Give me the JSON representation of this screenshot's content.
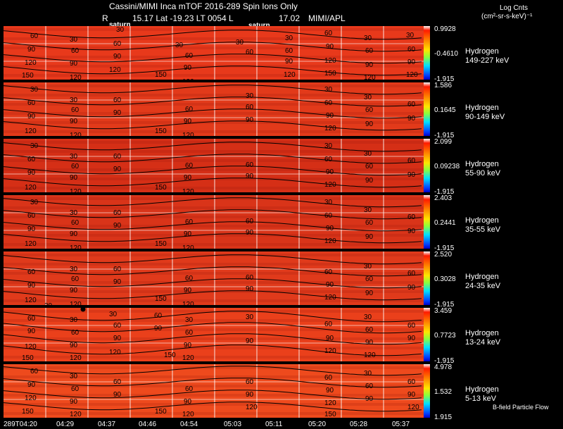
{
  "header": {
    "title_line": "Cassini/MIMI Inca mTOF  2016-289   Spin   Ions Only",
    "r_label": "R",
    "coords_line": "15.17 Lat -19.23 LT 0054 L",
    "l_value": "17.02",
    "institution": "MIMI/APL",
    "saturn_label": "saturn"
  },
  "colorbar_title": {
    "line1": "Log Cnts",
    "line2": "(cm²-sr-s-keV)⁻¹"
  },
  "panels": [
    {
      "species": "Hydrogen",
      "energy": "149-227 keV",
      "max": "0.9928",
      "mid": "-0.4610",
      "min": "-1.915"
    },
    {
      "species": "Hydrogen",
      "energy": "90-149 keV",
      "max": "1.586",
      "mid": "0.1645",
      "min": "-1.915"
    },
    {
      "species": "Hydrogen",
      "energy": "55-90 keV",
      "max": "2.099",
      "mid": "0.09238",
      "min": "-1.915"
    },
    {
      "species": "Hydrogen",
      "energy": "35-55 keV",
      "max": "2.403",
      "mid": "0.2441",
      "min": "-1.915"
    },
    {
      "species": "Hydrogen",
      "energy": "24-35 keV",
      "max": "2.520",
      "mid": "0.3028",
      "min": "-1.915"
    },
    {
      "species": "Hydrogen",
      "energy": "13-24 keV",
      "max": "3.459",
      "mid": "0.7723",
      "min": "-1.915"
    },
    {
      "species": "Hydrogen",
      "energy": "5-13 keV",
      "max": "4.978",
      "mid": "1.532",
      "min": "1.915"
    }
  ],
  "contour_labels": [
    "30",
    "60",
    "90",
    "120",
    "150"
  ],
  "b_field_label": "B-field Particle Flow",
  "x_ticks": [
    "289T04:20",
    "04:29",
    "04:37",
    "04:46",
    "04:54",
    "05:03",
    "05:11",
    "05:20",
    "05:28",
    "05:37"
  ],
  "chart_data": {
    "type": "heatmap",
    "title": "Cassini/MIMI Inca mTOF 2016-289 Spin Ions Only",
    "x_ticks": [
      "289T04:20",
      "04:29",
      "04:37",
      "04:46",
      "04:54",
      "05:03",
      "05:11",
      "05:20",
      "05:28",
      "05:37"
    ],
    "series": [
      {
        "name": "Hydrogen 149-227 keV",
        "cmax": 0.9928,
        "cmid": -0.461,
        "cmin": -1.915
      },
      {
        "name": "Hydrogen 90-149 keV",
        "cmax": 1.586,
        "cmid": 0.1645,
        "cmin": -1.915
      },
      {
        "name": "Hydrogen 55-90 keV",
        "cmax": 2.099,
        "cmid": 0.09238,
        "cmin": -1.915
      },
      {
        "name": "Hydrogen 35-55 keV",
        "cmax": 2.403,
        "cmid": 0.2441,
        "cmin": -1.915
      },
      {
        "name": "Hydrogen 24-35 keV",
        "cmax": 2.52,
        "cmid": 0.3028,
        "cmin": -1.915
      },
      {
        "name": "Hydrogen 13-24 keV",
        "cmax": 3.459,
        "cmid": 0.7723,
        "cmin": -1.915
      },
      {
        "name": "Hydrogen 5-13 keV",
        "cmax": 4.978,
        "cmid": 1.532,
        "cmin": 1.915
      }
    ],
    "contour_levels": [
      30,
      60,
      90,
      120,
      150
    ],
    "colorbar_label": "Log Cnts (cm²-sr-s-keV)⁻¹"
  }
}
